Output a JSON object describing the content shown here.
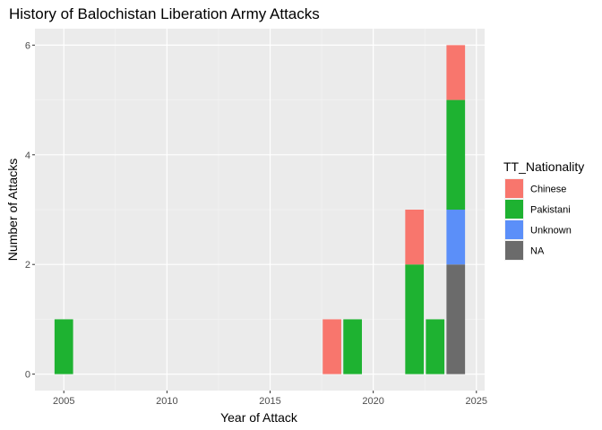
{
  "chart_data": {
    "type": "bar",
    "stacked": true,
    "title": "History of Balochistan Liberation Army Attacks",
    "xlabel": "Year of Attack",
    "ylabel": "Number of Attacks",
    "xlim": [
      2003.6,
      2025.4
    ],
    "ylim": [
      -0.3,
      6.3
    ],
    "x_ticks": [
      2005,
      2010,
      2015,
      2020,
      2025
    ],
    "y_ticks": [
      0,
      2,
      4,
      6
    ],
    "grid": true,
    "legend": {
      "title": "TT_Nationality",
      "position": "right",
      "entries": [
        {
          "name": "Chinese",
          "color": "#F8766D"
        },
        {
          "name": "Pakistani",
          "color": "#1EB231"
        },
        {
          "name": "Unknown",
          "color": "#5B8FF9"
        },
        {
          "name": "NA",
          "color": "#6B6B6B"
        }
      ]
    },
    "bars": [
      {
        "year": 2005,
        "segments": [
          {
            "name": "Pakistani",
            "value": 1
          }
        ]
      },
      {
        "year": 2018,
        "segments": [
          {
            "name": "Chinese",
            "value": 1
          }
        ]
      },
      {
        "year": 2019,
        "segments": [
          {
            "name": "Pakistani",
            "value": 1
          }
        ]
      },
      {
        "year": 2022,
        "segments": [
          {
            "name": "Chinese",
            "value": 1
          },
          {
            "name": "Pakistani",
            "value": 2
          }
        ]
      },
      {
        "year": 2023,
        "segments": [
          {
            "name": "Pakistani",
            "value": 1
          }
        ]
      },
      {
        "year": 2024,
        "segments": [
          {
            "name": "Chinese",
            "value": 1
          },
          {
            "name": "Pakistani",
            "value": 2
          },
          {
            "name": "Unknown",
            "value": 1
          },
          {
            "name": "NA",
            "value": 2
          }
        ]
      }
    ]
  }
}
